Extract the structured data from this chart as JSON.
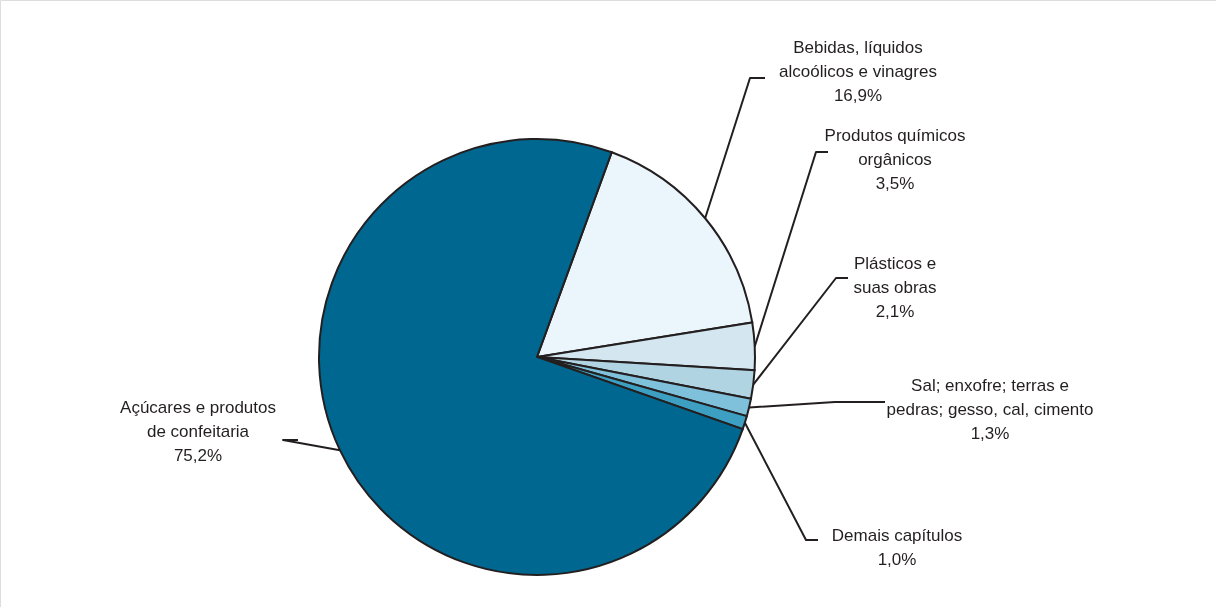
{
  "chart_data": {
    "type": "pie",
    "categories": [
      "Bebidas, líquidos alcoólicos e vinagres",
      "Produtos químicos orgânicos",
      "Plásticos e suas obras",
      "Sal; enxofre; terras e pedras; gesso, cal, cimento",
      "Demais capítulos",
      "Açúcares e produtos de confeitaria"
    ],
    "values": [
      16.9,
      3.5,
      2.1,
      1.3,
      1.0,
      75.2
    ],
    "colors": [
      "#eaf6fc",
      "#d4e6ef",
      "#b1d4e3",
      "#7fc0da",
      "#3d9fc2",
      "#006890"
    ],
    "value_labels": [
      "16,9%",
      "3,5%",
      "2,1%",
      "1,3%",
      "1,0%",
      "75,2%"
    ]
  }
}
